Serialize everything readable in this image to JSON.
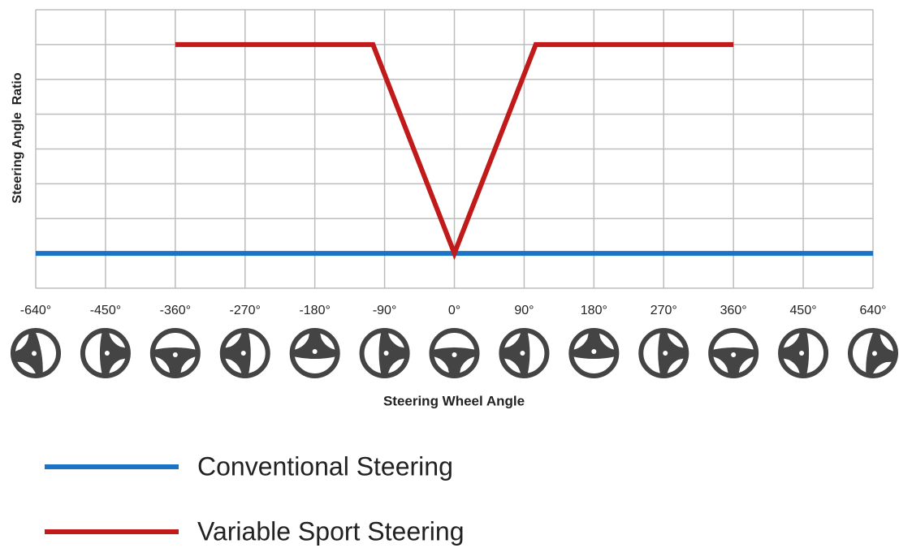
{
  "chart_data": {
    "type": "line",
    "y_label": "Steering Angle  Ratio",
    "x_label": "Steering Wheel Angle",
    "xlim": [
      -640,
      640
    ],
    "xticks": [
      {
        "value": -640,
        "label": "-640°"
      },
      {
        "value": -450,
        "label": "-450°"
      },
      {
        "value": -360,
        "label": "-360°"
      },
      {
        "value": -270,
        "label": "-270°"
      },
      {
        "value": -180,
        "label": "-180°"
      },
      {
        "value": -90,
        "label": "-90°"
      },
      {
        "value": 0,
        "label": "0°"
      },
      {
        "value": 90,
        "label": "90°"
      },
      {
        "value": 180,
        "label": "180°"
      },
      {
        "value": 270,
        "label": "270°"
      },
      {
        "value": 360,
        "label": "360°"
      },
      {
        "value": 450,
        "label": "450°"
      },
      {
        "value": 640,
        "label": "640°"
      }
    ],
    "ylim": [
      0,
      8
    ],
    "yticks": [
      0,
      1,
      2,
      3,
      4,
      5,
      6,
      7,
      8
    ],
    "grid": true,
    "series": [
      {
        "name": "Conventional Steering",
        "color": "#1a73c4",
        "x": [
          -640,
          640
        ],
        "values": [
          1,
          1
        ]
      },
      {
        "name": "Variable Sport Steering",
        "color": "#c01a1a",
        "x": [
          -360,
          -105,
          0,
          105,
          360
        ],
        "values": [
          7,
          7,
          1,
          7,
          7
        ]
      }
    ]
  }
}
